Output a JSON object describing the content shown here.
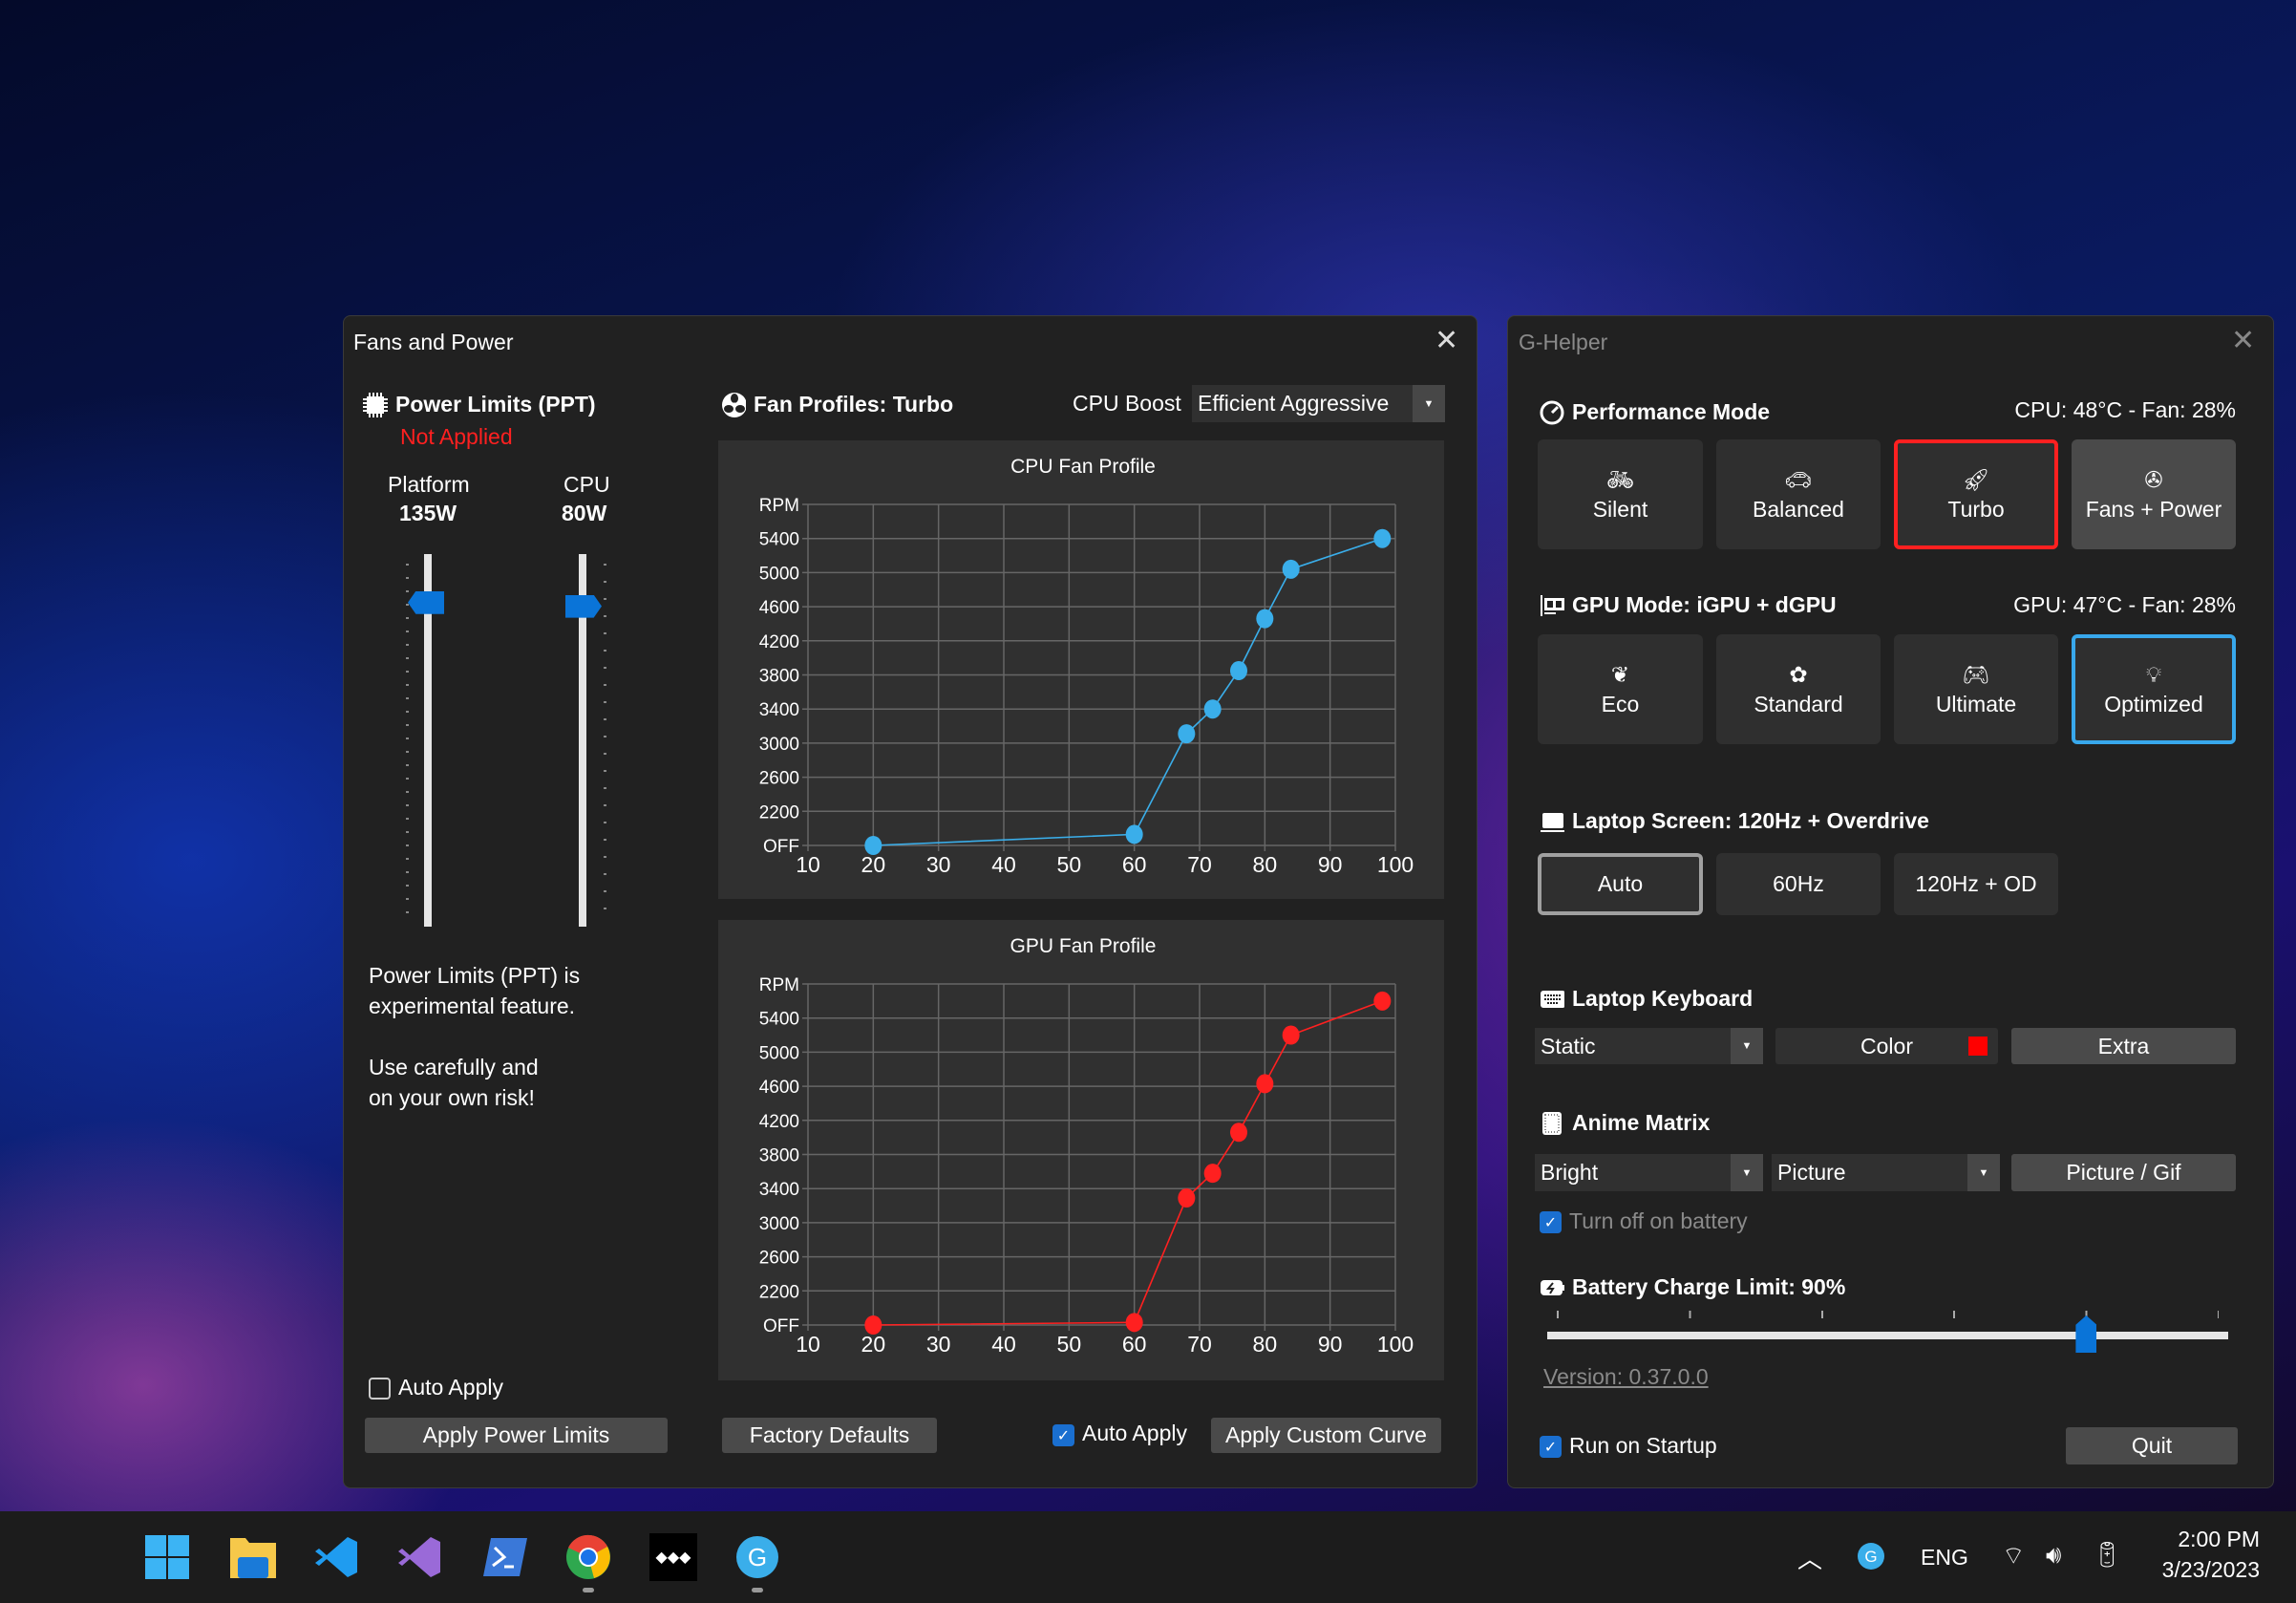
{
  "fans_window": {
    "title": "Fans and Power",
    "power": {
      "header": "Power Limits (PPT)",
      "status": "Not Applied",
      "status_color": "#ff2020",
      "platform": {
        "label": "Platform",
        "value": "135W",
        "level": 0.87
      },
      "cpu": {
        "label": "CPU",
        "value": "80W",
        "level": 0.86
      },
      "note1a": "Power Limits (PPT) is",
      "note1b": "experimental feature.",
      "note2a": "Use carefully and",
      "note2b": "on your own risk!",
      "auto_apply": {
        "label": "Auto Apply",
        "checked": false
      },
      "apply_button": "Apply Power Limits"
    },
    "fans": {
      "header": "Fan Profiles: Turbo",
      "cpu_boost_label": "CPU Boost",
      "cpu_boost_value": "Efficient Aggressive",
      "factory_defaults": "Factory Defaults",
      "auto_apply": {
        "label": "Auto Apply",
        "checked": true
      },
      "apply_curve": "Apply Custom Curve"
    }
  },
  "chart_data": [
    {
      "type": "line",
      "title": "CPU Fan Profile",
      "color": "#3aaeea",
      "xlim": [
        10,
        100
      ],
      "ylim": [
        1800,
        5800
      ],
      "x_ticks": [
        "10",
        "20",
        "30",
        "40",
        "50",
        "60",
        "70",
        "80",
        "90",
        "100"
      ],
      "y_ticks": [
        {
          "value": 1800,
          "label": "OFF"
        },
        {
          "value": 2200,
          "label": "2200"
        },
        {
          "value": 2600,
          "label": "2600"
        },
        {
          "value": 3000,
          "label": "3000"
        },
        {
          "value": 3400,
          "label": "3400"
        },
        {
          "value": 3800,
          "label": "3800"
        },
        {
          "value": 4200,
          "label": "4200"
        },
        {
          "value": 4600,
          "label": "4600"
        },
        {
          "value": 5000,
          "label": "5000"
        },
        {
          "value": 5400,
          "label": "5400"
        },
        {
          "value": 5800,
          "label": "RPM"
        }
      ],
      "grid": true,
      "x": [
        20,
        60,
        68,
        72,
        76,
        80,
        84,
        98
      ],
      "y": [
        1800,
        1930,
        3110,
        3400,
        3850,
        4460,
        5040,
        5400
      ]
    },
    {
      "type": "line",
      "title": "GPU Fan Profile",
      "color": "#ff2020",
      "xlim": [
        10,
        100
      ],
      "ylim": [
        1800,
        5800
      ],
      "x_ticks": [
        "10",
        "20",
        "30",
        "40",
        "50",
        "60",
        "70",
        "80",
        "90",
        "100"
      ],
      "y_ticks": [
        {
          "value": 1800,
          "label": "OFF"
        },
        {
          "value": 2200,
          "label": "2200"
        },
        {
          "value": 2600,
          "label": "2600"
        },
        {
          "value": 3000,
          "label": "3000"
        },
        {
          "value": 3400,
          "label": "3400"
        },
        {
          "value": 3800,
          "label": "3800"
        },
        {
          "value": 4200,
          "label": "4200"
        },
        {
          "value": 4600,
          "label": "4600"
        },
        {
          "value": 5000,
          "label": "5000"
        },
        {
          "value": 5400,
          "label": "5400"
        },
        {
          "value": 5800,
          "label": "RPM"
        }
      ],
      "grid": true,
      "x": [
        20,
        60,
        68,
        72,
        76,
        80,
        84,
        98
      ],
      "y": [
        1800,
        1830,
        3290,
        3580,
        4060,
        4630,
        5200,
        5600
      ]
    }
  ],
  "ghelper": {
    "title": "G-Helper",
    "perf": {
      "header": "Performance Mode",
      "status": "CPU: 48°C -  Fan: 28%",
      "modes": [
        {
          "label": "Silent",
          "icon": "bicycle-icon"
        },
        {
          "label": "Balanced",
          "icon": "car-icon"
        },
        {
          "label": "Turbo",
          "icon": "rocket-icon",
          "selected": true
        },
        {
          "label": "Fans + Power",
          "icon": "fan-icon"
        }
      ]
    },
    "gpu": {
      "header": "GPU Mode: iGPU + dGPU",
      "status": "GPU: 47°C -  Fan: 28%",
      "modes": [
        {
          "label": "Eco",
          "icon": "leaf-icon"
        },
        {
          "label": "Standard",
          "icon": "flower-icon"
        },
        {
          "label": "Ultimate",
          "icon": "gamepad-icon"
        },
        {
          "label": "Optimized",
          "icon": "bulb-gear-icon",
          "selected": true
        }
      ]
    },
    "screen": {
      "header": "Laptop Screen: 120Hz + Overdrive",
      "options": [
        "Auto",
        "60Hz",
        "120Hz + OD"
      ],
      "selected": "Auto"
    },
    "keyboard": {
      "header": "Laptop Keyboard",
      "mode": "Static",
      "color_label": "Color",
      "color": "#ff0000",
      "extra": "Extra"
    },
    "anime": {
      "header": "Anime Matrix",
      "brightness": "Bright",
      "mode": "Picture",
      "picture_button": "Picture / Gif",
      "battery_off": {
        "label": "Turn off on battery",
        "checked": true
      }
    },
    "battery": {
      "header": "Battery Charge Limit: 90%",
      "value": 90,
      "min": 50,
      "max": 100
    },
    "version": "Version: 0.37.0.0",
    "startup": {
      "label": "Run on Startup",
      "checked": true
    },
    "quit": "Quit"
  },
  "taskbar": {
    "apps": [
      "start-icon",
      "file-explorer-icon",
      "vscode-icon",
      "visual-studio-icon",
      "powershell-icon",
      "chrome-icon",
      "tidal-icon",
      "ghelper-icon"
    ],
    "tray": {
      "lang": "ENG",
      "time": "2:00 PM",
      "date": "3/23/2023"
    }
  }
}
